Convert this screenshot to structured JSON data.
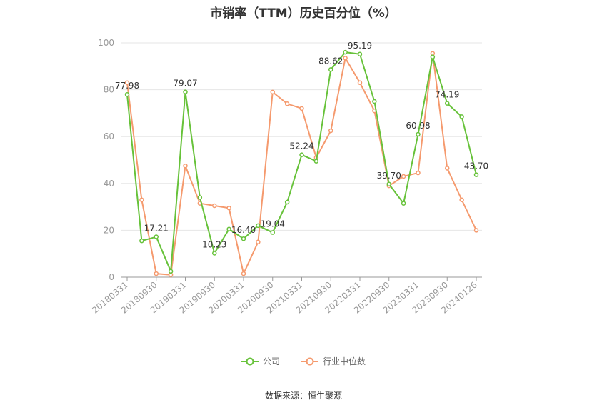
{
  "title": "市销率（TTM）历史百分位（%）",
  "source": "数据来源：恒生聚源",
  "colors": {
    "company": "#67c23a",
    "industry": "#f59a6e",
    "grid": "#e6e6e6",
    "axis": "#999999"
  },
  "chart_data": {
    "type": "line",
    "title": "市销率（TTM）历史百分位（%）",
    "ylim": [
      0,
      100
    ],
    "yticks": [
      0,
      20,
      40,
      60,
      80,
      100
    ],
    "grid": true,
    "legend_position": "bottom",
    "x": [
      "20180331",
      "20180630",
      "20180930",
      "20181231",
      "20190331",
      "20190630",
      "20190930",
      "20191231",
      "20200331",
      "20200630",
      "20200930",
      "20201231",
      "20210331",
      "20210630",
      "20210930",
      "20211231",
      "20220331",
      "20220630",
      "20220930",
      "20221231",
      "20230331",
      "20230630",
      "20230930",
      "20231231",
      "20240126"
    ],
    "xtick_labels": [
      "20180331",
      "20180930",
      "20190331",
      "20190930",
      "20200331",
      "20200930",
      "20210331",
      "20210930",
      "20220331",
      "20220930",
      "20230331",
      "20230930",
      "20240126"
    ],
    "series": [
      {
        "name": "公司",
        "values": [
          77.98,
          15.5,
          17.21,
          2.5,
          79.07,
          34.0,
          10.23,
          20.5,
          16.4,
          22.0,
          19.04,
          32.0,
          52.24,
          49.5,
          88.62,
          96.0,
          95.19,
          75.0,
          39.7,
          31.5,
          60.98,
          94.0,
          74.19,
          68.5,
          43.7
        ]
      },
      {
        "name": "行业中位数",
        "values": [
          83.0,
          33.0,
          1.5,
          1.0,
          47.5,
          31.5,
          30.5,
          29.5,
          1.5,
          15.0,
          79.0,
          74.0,
          72.0,
          51.0,
          62.5,
          93.5,
          83.0,
          71.0,
          39.0,
          43.0,
          44.5,
          95.5,
          46.5,
          33.0,
          20.0
        ]
      }
    ],
    "data_labels": [
      {
        "index": 0,
        "text": "77.98"
      },
      {
        "index": 2,
        "text": "17.21"
      },
      {
        "index": 4,
        "text": "79.07"
      },
      {
        "index": 6,
        "text": "10.23"
      },
      {
        "index": 8,
        "text": "16.40"
      },
      {
        "index": 10,
        "text": "19.04"
      },
      {
        "index": 12,
        "text": "52.24"
      },
      {
        "index": 14,
        "text": "88.62"
      },
      {
        "index": 16,
        "text": "95.19"
      },
      {
        "index": 18,
        "text": "39.70"
      },
      {
        "index": 20,
        "text": "60.98"
      },
      {
        "index": 22,
        "text": "74.19"
      },
      {
        "index": 24,
        "text": "43.70"
      }
    ]
  },
  "legend": {
    "company_label": "公司",
    "industry_label": "行业中位数"
  }
}
